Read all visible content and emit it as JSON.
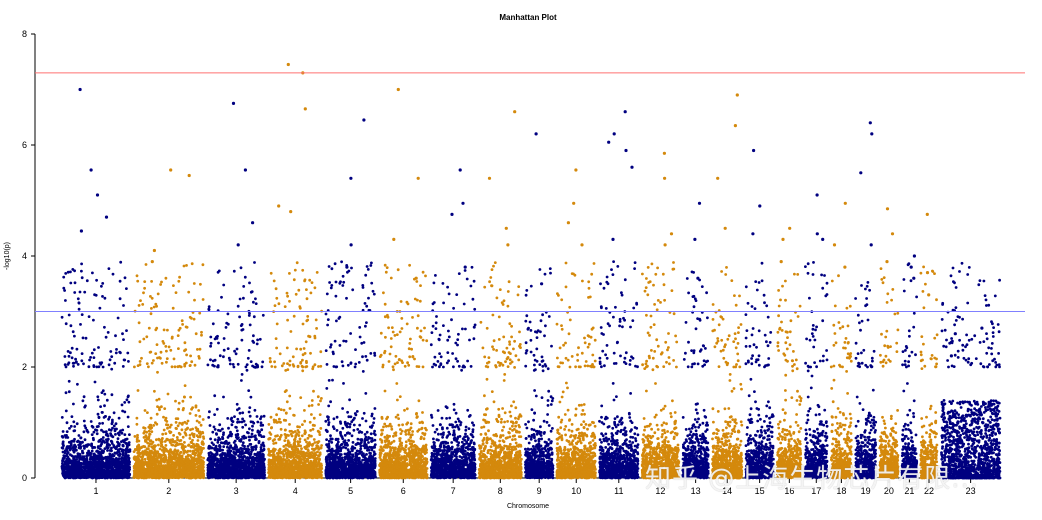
{
  "chart_data": {
    "type": "scatter",
    "title": "Manhattan Plot",
    "xlabel": "Chromosome",
    "ylabel": "-log10(p)",
    "ylim": [
      0,
      8
    ],
    "y_ticks": [
      0,
      2,
      4,
      6,
      8
    ],
    "grid": false,
    "thresholds": [
      {
        "value": 7.3,
        "color": "#ff7070"
      },
      {
        "value": 3.0,
        "color": "#8080ff"
      }
    ],
    "colors": [
      "#000080",
      "#d4890c"
    ],
    "chromosomes": [
      {
        "label": "1",
        "peaks": [
          7.0,
          5.55,
          5.1,
          4.7,
          4.45
        ]
      },
      {
        "label": "2",
        "peaks": [
          5.55,
          5.45,
          4.1,
          3.9
        ]
      },
      {
        "label": "3",
        "peaks": [
          6.75,
          5.55,
          4.6,
          4.2
        ]
      },
      {
        "label": "4",
        "peaks": [
          7.45,
          7.3,
          6.65,
          4.9,
          4.8
        ]
      },
      {
        "label": "5",
        "peaks": [
          6.45,
          5.4,
          4.2,
          3.8
        ]
      },
      {
        "label": "6",
        "peaks": [
          7.0,
          5.4,
          4.3,
          3.6
        ]
      },
      {
        "label": "7",
        "peaks": [
          5.55,
          4.95,
          4.75,
          3.8
        ]
      },
      {
        "label": "8",
        "peaks": [
          6.6,
          5.4,
          4.5,
          4.2
        ]
      },
      {
        "label": "9",
        "peaks": [
          6.2,
          3.5
        ]
      },
      {
        "label": "10",
        "peaks": [
          5.55,
          4.95,
          4.6,
          4.2
        ]
      },
      {
        "label": "11",
        "peaks": [
          6.6,
          6.2,
          6.05,
          5.9,
          5.6,
          4.3
        ]
      },
      {
        "label": "12",
        "peaks": [
          5.85,
          5.4,
          4.4,
          4.2
        ]
      },
      {
        "label": "13",
        "peaks": [
          4.95,
          4.3,
          3.6
        ]
      },
      {
        "label": "14",
        "peaks": [
          6.9,
          6.35,
          5.4,
          4.5
        ]
      },
      {
        "label": "15",
        "peaks": [
          5.9,
          4.9,
          4.4
        ]
      },
      {
        "label": "16",
        "peaks": [
          4.5,
          4.3,
          3.9
        ]
      },
      {
        "label": "17",
        "peaks": [
          5.1,
          4.4,
          4.3
        ]
      },
      {
        "label": "18",
        "peaks": [
          4.95,
          4.2,
          3.8
        ]
      },
      {
        "label": "19",
        "peaks": [
          6.4,
          6.2,
          5.5,
          4.2
        ]
      },
      {
        "label": "20",
        "peaks": [
          4.85,
          4.4,
          3.9
        ]
      },
      {
        "label": "21",
        "peaks": [
          4.0,
          3.8,
          3.6
        ]
      },
      {
        "label": "22",
        "peaks": [
          4.75,
          3.7,
          3.3
        ]
      },
      {
        "label": "23",
        "peaks": [
          2.7,
          2.6,
          2.2
        ]
      }
    ]
  },
  "watermark": "知乎 @上海生物芯片有限..."
}
